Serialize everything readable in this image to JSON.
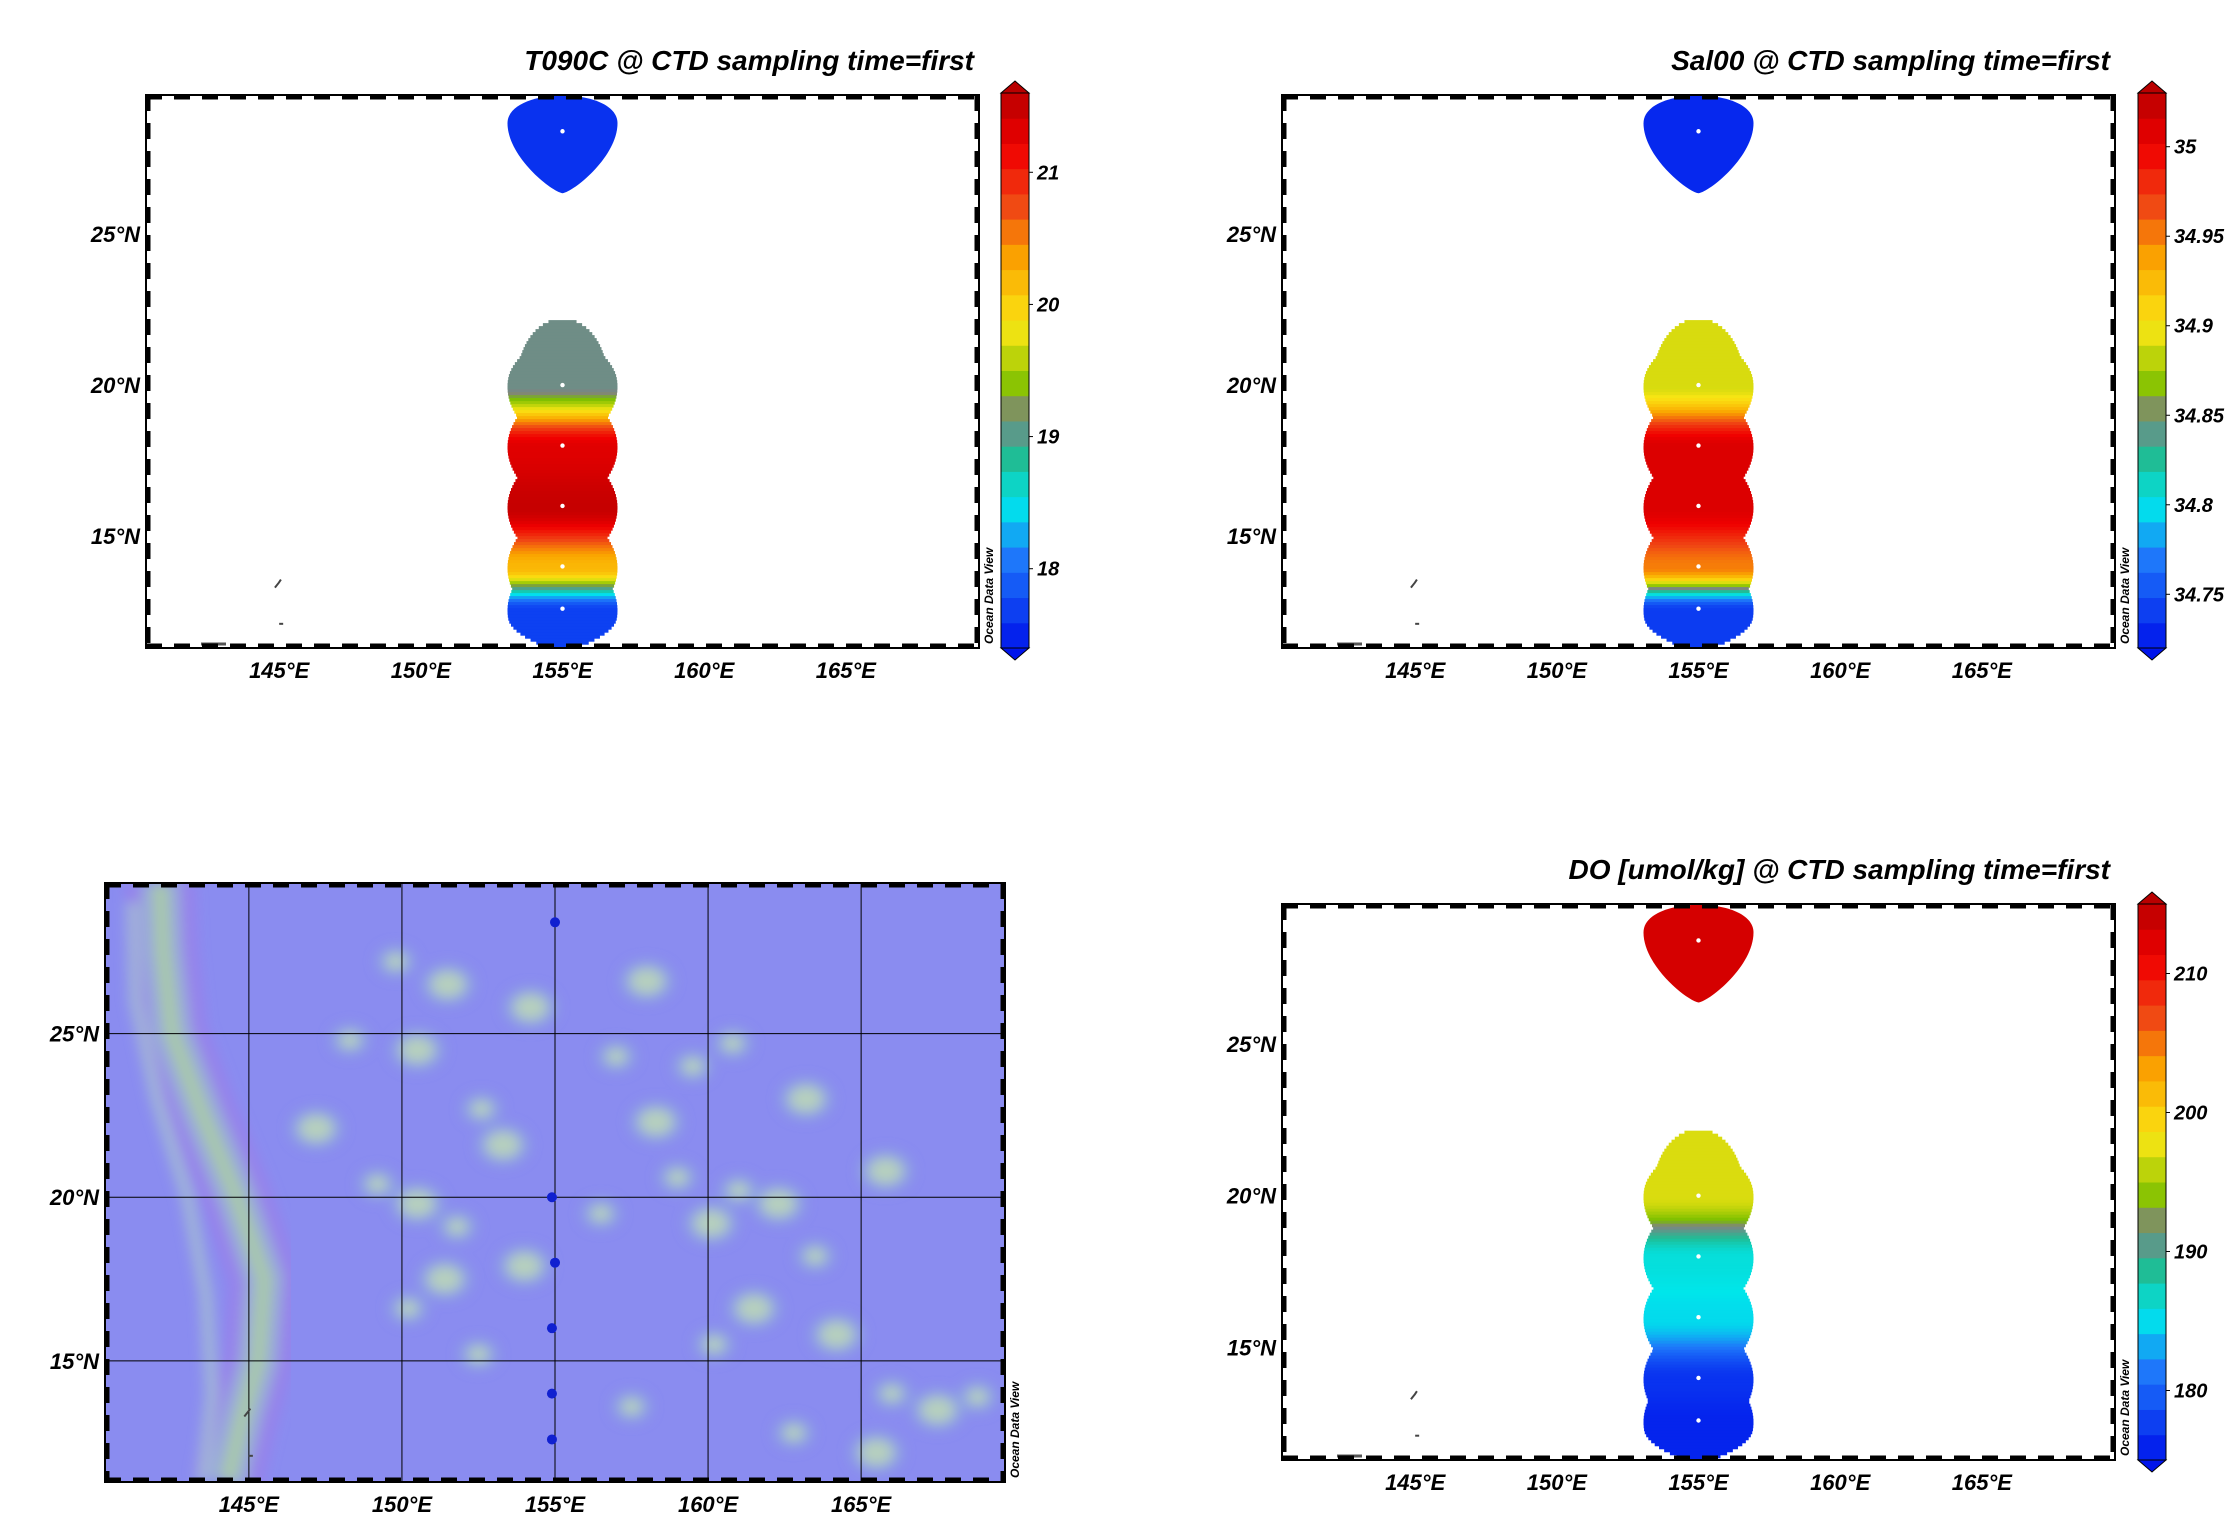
{
  "watermark": "Ocean Data View",
  "map": {
    "lon_range": [
      140.3,
      169.7
    ],
    "lat_range": [
      11.3,
      29.6
    ],
    "x_ticks": [
      {
        "value": 145,
        "label": "145°E"
      },
      {
        "value": 150,
        "label": "150°E"
      },
      {
        "value": 155,
        "label": "155°E"
      },
      {
        "value": 160,
        "label": "160°E"
      },
      {
        "value": 165,
        "label": "165°E"
      }
    ],
    "y_ticks": [
      {
        "value": 25,
        "label": "25°N"
      },
      {
        "value": 20,
        "label": "20°N"
      },
      {
        "value": 15,
        "label": "15°N"
      }
    ]
  },
  "chart_data": [
    {
      "type": "heatmap",
      "id": "temperature",
      "title": "T090C @ CTD sampling time=first",
      "colorbar": {
        "range": [
          17.4,
          21.6
        ],
        "ticks": [
          {
            "value": 18,
            "label": "18"
          },
          {
            "value": 19,
            "label": "19"
          },
          {
            "value": 20,
            "label": "20"
          },
          {
            "value": 21,
            "label": "21"
          }
        ]
      },
      "stations": [
        {
          "lon": 155.0,
          "lat": 28.4,
          "value": 17.6
        },
        {
          "lon": 155.0,
          "lat": 20.0,
          "value": 19.1
        },
        {
          "lon": 155.0,
          "lat": 18.0,
          "value": 21.3
        },
        {
          "lon": 155.0,
          "lat": 16.0,
          "value": 21.5
        },
        {
          "lon": 155.0,
          "lat": 14.0,
          "value": 20.2
        },
        {
          "lon": 155.0,
          "lat": 12.6,
          "value": 17.7
        }
      ]
    },
    {
      "type": "heatmap",
      "id": "salinity",
      "title": "Sal00 @ CTD sampling time=first",
      "colorbar": {
        "range": [
          34.72,
          35.03
        ],
        "ticks": [
          {
            "value": 34.75,
            "label": "34.75"
          },
          {
            "value": 34.8,
            "label": "34.8"
          },
          {
            "value": 34.85,
            "label": "34.85"
          },
          {
            "value": 34.9,
            "label": "34.9"
          },
          {
            "value": 34.95,
            "label": "34.95"
          },
          {
            "value": 35.0,
            "label": "35"
          }
        ]
      },
      "stations": [
        {
          "lon": 155.0,
          "lat": 28.4,
          "value": 34.73
        },
        {
          "lon": 155.0,
          "lat": 20.0,
          "value": 34.89
        },
        {
          "lon": 155.0,
          "lat": 18.0,
          "value": 35.01
        },
        {
          "lon": 155.0,
          "lat": 16.0,
          "value": 35.01
        },
        {
          "lon": 155.0,
          "lat": 14.0,
          "value": 34.95
        },
        {
          "lon": 155.0,
          "lat": 12.6,
          "value": 34.74
        }
      ]
    },
    {
      "type": "scatter",
      "id": "station-map",
      "stations": [
        {
          "lon": 155.0,
          "lat": 28.4
        },
        {
          "lon": 154.9,
          "lat": 20.0
        },
        {
          "lon": 155.0,
          "lat": 18.0
        },
        {
          "lon": 154.9,
          "lat": 16.0
        },
        {
          "lon": 154.9,
          "lat": 14.0
        },
        {
          "lon": 154.9,
          "lat": 12.6
        }
      ]
    },
    {
      "type": "heatmap",
      "id": "oxygen",
      "title": "DO [umol/kg] @ CTD sampling time=first",
      "colorbar": {
        "range": [
          175,
          215
        ],
        "ticks": [
          {
            "value": 180,
            "label": "180"
          },
          {
            "value": 190,
            "label": "190"
          },
          {
            "value": 200,
            "label": "200"
          },
          {
            "value": 210,
            "label": "210"
          }
        ]
      },
      "stations": [
        {
          "lon": 155.0,
          "lat": 28.4,
          "value": 213
        },
        {
          "lon": 155.0,
          "lat": 20.0,
          "value": 197
        },
        {
          "lon": 155.0,
          "lat": 18.0,
          "value": 186
        },
        {
          "lon": 155.0,
          "lat": 16.0,
          "value": 185
        },
        {
          "lon": 155.0,
          "lat": 14.0,
          "value": 177
        },
        {
          "lon": 155.0,
          "lat": 12.6,
          "value": 176
        }
      ]
    }
  ],
  "colors": {
    "map_ocean": "#8a8cf0",
    "map_ridge": "#a8c8ac",
    "station_marker": "#1020d0",
    "station_dot": "#ffffff"
  }
}
